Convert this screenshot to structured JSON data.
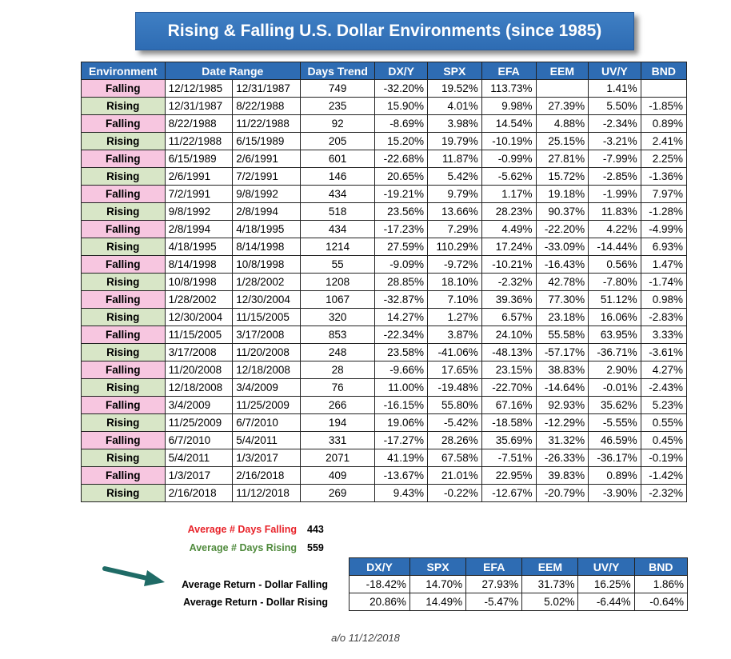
{
  "title": "Rising & Falling U.S. Dollar Environments (since 1985)",
  "main_table": {
    "headers": [
      "Environment",
      "Date Range",
      "Days Trend",
      "DX/Y",
      "SPX",
      "EFA",
      "EEM",
      "UV/Y",
      "BND"
    ],
    "rows": [
      {
        "env": "Falling",
        "start": "12/12/1985",
        "end": "12/31/1987",
        "days": "749",
        "dxy": "-32.20%",
        "spx": "19.52%",
        "efa": "113.73%",
        "eem": "",
        "uvy": "1.41%",
        "bnd": ""
      },
      {
        "env": "Rising",
        "start": "12/31/1987",
        "end": "8/22/1988",
        "days": "235",
        "dxy": "15.90%",
        "spx": "4.01%",
        "efa": "9.98%",
        "eem": "27.39%",
        "uvy": "5.50%",
        "bnd": "-1.85%"
      },
      {
        "env": "Falling",
        "start": "8/22/1988",
        "end": "11/22/1988",
        "days": "92",
        "dxy": "-8.69%",
        "spx": "3.98%",
        "efa": "14.54%",
        "eem": "4.88%",
        "uvy": "-2.34%",
        "bnd": "0.89%"
      },
      {
        "env": "Rising",
        "start": "11/22/1988",
        "end": "6/15/1989",
        "days": "205",
        "dxy": "15.20%",
        "spx": "19.79%",
        "efa": "-10.19%",
        "eem": "25.15%",
        "uvy": "-3.21%",
        "bnd": "2.41%"
      },
      {
        "env": "Falling",
        "start": "6/15/1989",
        "end": "2/6/1991",
        "days": "601",
        "dxy": "-22.68%",
        "spx": "11.87%",
        "efa": "-0.99%",
        "eem": "27.81%",
        "uvy": "-7.99%",
        "bnd": "2.25%"
      },
      {
        "env": "Rising",
        "start": "2/6/1991",
        "end": "7/2/1991",
        "days": "146",
        "dxy": "20.65%",
        "spx": "5.42%",
        "efa": "-5.62%",
        "eem": "15.72%",
        "uvy": "-2.85%",
        "bnd": "-1.36%"
      },
      {
        "env": "Falling",
        "start": "7/2/1991",
        "end": "9/8/1992",
        "days": "434",
        "dxy": "-19.21%",
        "spx": "9.79%",
        "efa": "1.17%",
        "eem": "19.18%",
        "uvy": "-1.99%",
        "bnd": "7.97%"
      },
      {
        "env": "Rising",
        "start": "9/8/1992",
        "end": "2/8/1994",
        "days": "518",
        "dxy": "23.56%",
        "spx": "13.66%",
        "efa": "28.23%",
        "eem": "90.37%",
        "uvy": "11.83%",
        "bnd": "-1.28%"
      },
      {
        "env": "Falling",
        "start": "2/8/1994",
        "end": "4/18/1995",
        "days": "434",
        "dxy": "-17.23%",
        "spx": "7.29%",
        "efa": "4.49%",
        "eem": "-22.20%",
        "uvy": "4.22%",
        "bnd": "-4.99%"
      },
      {
        "env": "Rising",
        "start": "4/18/1995",
        "end": "8/14/1998",
        "days": "1214",
        "dxy": "27.59%",
        "spx": "110.29%",
        "efa": "17.24%",
        "eem": "-33.09%",
        "uvy": "-14.44%",
        "bnd": "6.93%"
      },
      {
        "env": "Falling",
        "start": "8/14/1998",
        "end": "10/8/1998",
        "days": "55",
        "dxy": "-9.09%",
        "spx": "-9.72%",
        "efa": "-10.21%",
        "eem": "-16.43%",
        "uvy": "0.56%",
        "bnd": "1.47%"
      },
      {
        "env": "Rising",
        "start": "10/8/1998",
        "end": "1/28/2002",
        "days": "1208",
        "dxy": "28.85%",
        "spx": "18.10%",
        "efa": "-2.32%",
        "eem": "42.78%",
        "uvy": "-7.80%",
        "bnd": "-1.74%"
      },
      {
        "env": "Falling",
        "start": "1/28/2002",
        "end": "12/30/2004",
        "days": "1067",
        "dxy": "-32.87%",
        "spx": "7.10%",
        "efa": "39.36%",
        "eem": "77.30%",
        "uvy": "51.12%",
        "bnd": "0.98%"
      },
      {
        "env": "Rising",
        "start": "12/30/2004",
        "end": "11/15/2005",
        "days": "320",
        "dxy": "14.27%",
        "spx": "1.27%",
        "efa": "6.57%",
        "eem": "23.18%",
        "uvy": "16.06%",
        "bnd": "-2.83%"
      },
      {
        "env": "Falling",
        "start": "11/15/2005",
        "end": "3/17/2008",
        "days": "853",
        "dxy": "-22.34%",
        "spx": "3.87%",
        "efa": "24.10%",
        "eem": "55.58%",
        "uvy": "63.95%",
        "bnd": "3.33%"
      },
      {
        "env": "Rising",
        "start": "3/17/2008",
        "end": "11/20/2008",
        "days": "248",
        "dxy": "23.58%",
        "spx": "-41.06%",
        "efa": "-48.13%",
        "eem": "-57.17%",
        "uvy": "-36.71%",
        "bnd": "-3.61%"
      },
      {
        "env": "Falling",
        "start": "11/20/2008",
        "end": "12/18/2008",
        "days": "28",
        "dxy": "-9.66%",
        "spx": "17.65%",
        "efa": "23.15%",
        "eem": "38.83%",
        "uvy": "2.90%",
        "bnd": "4.27%"
      },
      {
        "env": "Rising",
        "start": "12/18/2008",
        "end": "3/4/2009",
        "days": "76",
        "dxy": "11.00%",
        "spx": "-19.48%",
        "efa": "-22.70%",
        "eem": "-14.64%",
        "uvy": "-0.01%",
        "bnd": "-2.43%"
      },
      {
        "env": "Falling",
        "start": "3/4/2009",
        "end": "11/25/2009",
        "days": "266",
        "dxy": "-16.15%",
        "spx": "55.80%",
        "efa": "67.16%",
        "eem": "92.93%",
        "uvy": "35.62%",
        "bnd": "5.23%"
      },
      {
        "env": "Rising",
        "start": "11/25/2009",
        "end": "6/7/2010",
        "days": "194",
        "dxy": "19.06%",
        "spx": "-5.42%",
        "efa": "-18.58%",
        "eem": "-12.29%",
        "uvy": "-5.55%",
        "bnd": "0.55%"
      },
      {
        "env": "Falling",
        "start": "6/7/2010",
        "end": "5/4/2011",
        "days": "331",
        "dxy": "-17.27%",
        "spx": "28.26%",
        "efa": "35.69%",
        "eem": "31.32%",
        "uvy": "46.59%",
        "bnd": "0.45%"
      },
      {
        "env": "Rising",
        "start": "5/4/2011",
        "end": "1/3/2017",
        "days": "2071",
        "dxy": "41.19%",
        "spx": "67.58%",
        "efa": "-7.51%",
        "eem": "-26.33%",
        "uvy": "-36.17%",
        "bnd": "-0.19%"
      },
      {
        "env": "Falling",
        "start": "1/3/2017",
        "end": "2/16/2018",
        "days": "409",
        "dxy": "-13.67%",
        "spx": "21.01%",
        "efa": "22.95%",
        "eem": "39.83%",
        "uvy": "0.89%",
        "bnd": "-1.42%"
      },
      {
        "env": "Rising",
        "start": "2/16/2018",
        "end": "11/12/2018",
        "days": "269",
        "dxy": "9.43%",
        "spx": "-0.22%",
        "efa": "-12.67%",
        "eem": "-20.79%",
        "uvy": "-3.90%",
        "bnd": "-2.32%"
      }
    ]
  },
  "averages": {
    "falling_days_label": "Average # Days Falling",
    "falling_days_value": "443",
    "rising_days_label": "Average # Days Rising",
    "rising_days_value": "559"
  },
  "summary": {
    "headers": [
      "DX/Y",
      "SPX",
      "EFA",
      "EEM",
      "UV/Y",
      "BND"
    ],
    "falling_label": "Average Return - Dollar Falling",
    "falling_values": [
      "-18.42%",
      "14.70%",
      "27.93%",
      "31.73%",
      "16.25%",
      "1.86%"
    ],
    "rising_label": "Average Return - Dollar Rising",
    "rising_values": [
      "20.86%",
      "14.49%",
      "-5.47%",
      "5.02%",
      "-6.44%",
      "-0.64%"
    ]
  },
  "note": "a/o 11/12/2018",
  "colors": {
    "header_blue": "#2e6cb3",
    "falling_pink": "#f7c6e0",
    "rising_green": "#d8e6c7",
    "falling_label_red": "#e8232a",
    "rising_label_green": "#4f8a3c",
    "arrow_teal": "#1f6b66"
  }
}
